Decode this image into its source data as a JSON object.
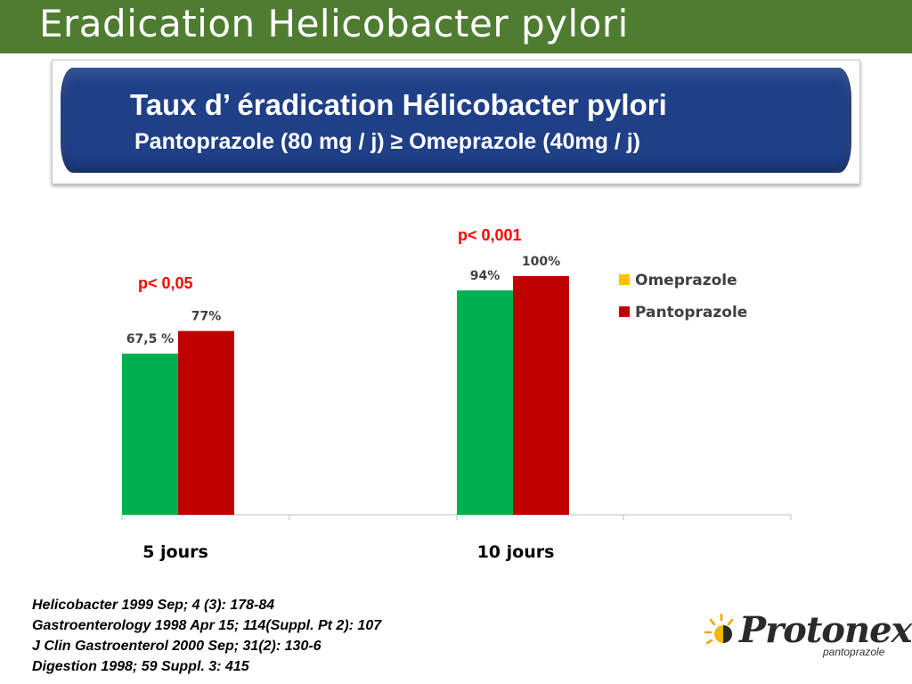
{
  "slide": {
    "title": "Eradication Helicobacter pylori",
    "banner_line1": "Taux d’ éradication Hélicobacter pylori",
    "banner_line2": "Pantoprazole (80 mg / j)  ≥  Omeprazole (40mg / j)"
  },
  "chart_data": {
    "type": "bar",
    "categories": [
      "5 jours",
      "10 jours"
    ],
    "series": [
      {
        "name": "Omeprazole",
        "values": [
          67.5,
          94
        ],
        "labels": [
          "67,5 %",
          "94%"
        ],
        "color": "#00b050",
        "legend_color": "#ffc000"
      },
      {
        "name": "Pantoprazole",
        "values": [
          77,
          100
        ],
        "labels": [
          "77%",
          "100%"
        ],
        "color": "#c00000",
        "legend_color": "#c00000"
      }
    ],
    "ylim": [
      0,
      100
    ],
    "annotations": [
      "p< 0,05",
      "p< 0,001"
    ],
    "annotation_color": "#ff0000",
    "legend_position": "right",
    "grid": false
  },
  "references": [
    "Helicobacter 1999 Sep; 4 (3): 178-84",
    "Gastroenterology 1998 Apr 15; 114(Suppl. Pt 2): 107",
    "J Clin Gastroenterol 2000 Sep; 31(2): 130-6",
    "Digestion 1998; 59 Suppl. 3: 415"
  ],
  "logo": {
    "name": "Protonex",
    "subtitle": "pantoprazole",
    "icon": "sun-icon"
  }
}
